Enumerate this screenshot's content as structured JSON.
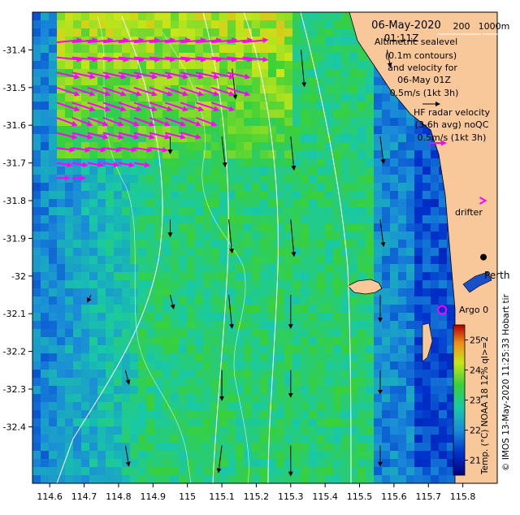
{
  "header": {
    "date": "06-May-2020",
    "time": "01:11Z",
    "bathy_labels": [
      "200",
      "1000m"
    ]
  },
  "legend": {
    "altimetry_lines": [
      "Altimetric sealevel",
      "(0.1m contours)",
      "and velocity for",
      "06-May 01Z",
      "0.5m/s (1kt 3h)"
    ],
    "radar_lines": [
      "HF radar velocity",
      "(3-6h avg) noQC",
      "0.5m/s (1kt 3h)"
    ],
    "drifter_label": "drifter",
    "argo_label": "Argo 0"
  },
  "places": {
    "city": "Perth",
    "partial_label": "Hobart tir"
  },
  "colorbar": {
    "ticks": [
      "25",
      "24",
      "23",
      "22",
      "21"
    ],
    "caption": "Temp. (°C) NOAA 18 12% qI>=2"
  },
  "credit": "© IMOS 13-May-2020 11:25:33 Hobart tir",
  "colors": {
    "land": "#f8c89a",
    "radar_arrow": "#ff00ff",
    "altimetry_arrow": "#000000",
    "contour": "#ffffff"
  },
  "chart_data": {
    "type": "heatmap",
    "xlabel": "",
    "ylabel": "",
    "xlim": [
      114.55,
      115.9
    ],
    "ylim": [
      -32.55,
      -31.3
    ],
    "x_ticks": [
      "114.6",
      "114.7",
      "114.8",
      "114.9",
      "115",
      "115.1",
      "115.2",
      "115.3",
      "115.4",
      "115.5",
      "115.6",
      "115.7",
      "115.8"
    ],
    "y_ticks": [
      "-31.4",
      "-31.5",
      "-31.6",
      "-31.7",
      "-31.8",
      "-31.9",
      "-32",
      "-32.1",
      "-32.2",
      "-32.3",
      "-32.4"
    ],
    "color_range": [
      20.5,
      25.5
    ],
    "colorbar_values": [
      25,
      24,
      23,
      22,
      21
    ],
    "altimetry_vectors": [
      {
        "lon": 115.13,
        "lat": -31.45,
        "u": 0.01,
        "v": -0.09
      },
      {
        "lon": 115.33,
        "lat": -31.4,
        "u": 0.01,
        "v": -0.11
      },
      {
        "lon": 115.58,
        "lat": -31.4,
        "u": 0.01,
        "v": -0.05
      },
      {
        "lon": 114.95,
        "lat": -31.63,
        "u": 0.0,
        "v": -0.05
      },
      {
        "lon": 115.1,
        "lat": -31.63,
        "u": 0.01,
        "v": -0.09
      },
      {
        "lon": 115.3,
        "lat": -31.63,
        "u": 0.01,
        "v": -0.1
      },
      {
        "lon": 115.56,
        "lat": -31.63,
        "u": 0.01,
        "v": -0.08
      },
      {
        "lon": 114.95,
        "lat": -31.85,
        "u": 0.0,
        "v": -0.05
      },
      {
        "lon": 115.12,
        "lat": -31.85,
        "u": 0.01,
        "v": -0.1
      },
      {
        "lon": 115.3,
        "lat": -31.85,
        "u": 0.01,
        "v": -0.11
      },
      {
        "lon": 115.56,
        "lat": -31.85,
        "u": 0.01,
        "v": -0.08
      },
      {
        "lon": 114.72,
        "lat": -32.05,
        "u": -0.01,
        "v": -0.02
      },
      {
        "lon": 114.95,
        "lat": -32.05,
        "u": 0.01,
        "v": -0.04
      },
      {
        "lon": 115.12,
        "lat": -32.05,
        "u": 0.01,
        "v": -0.1
      },
      {
        "lon": 115.3,
        "lat": -32.05,
        "u": 0.0,
        "v": -0.1
      },
      {
        "lon": 115.56,
        "lat": -32.05,
        "u": 0.0,
        "v": -0.08
      },
      {
        "lon": 114.82,
        "lat": -32.25,
        "u": 0.01,
        "v": -0.04
      },
      {
        "lon": 115.1,
        "lat": -32.25,
        "u": 0.0,
        "v": -0.09
      },
      {
        "lon": 115.3,
        "lat": -32.25,
        "u": 0.0,
        "v": -0.08
      },
      {
        "lon": 115.56,
        "lat": -32.25,
        "u": 0.0,
        "v": -0.07
      },
      {
        "lon": 114.82,
        "lat": -32.45,
        "u": 0.01,
        "v": -0.06
      },
      {
        "lon": 115.1,
        "lat": -32.45,
        "u": -0.01,
        "v": -0.08
      },
      {
        "lon": 115.3,
        "lat": -32.45,
        "u": 0.0,
        "v": -0.09
      },
      {
        "lon": 115.56,
        "lat": -32.45,
        "u": 0.0,
        "v": -0.06
      }
    ],
    "radar_rows": [
      {
        "lat": -31.38,
        "lon_start": 114.62,
        "lon_end": 115.18,
        "u": 0.1,
        "v": 0.01
      },
      {
        "lat": -31.42,
        "lon_start": 114.62,
        "lon_end": 115.18,
        "u": 0.1,
        "v": -0.01
      },
      {
        "lat": -31.46,
        "lon_start": 114.62,
        "lon_end": 115.15,
        "u": 0.09,
        "v": -0.02
      },
      {
        "lat": -31.5,
        "lon_start": 114.62,
        "lon_end": 115.12,
        "u": 0.09,
        "v": -0.03
      },
      {
        "lat": -31.54,
        "lon_start": 114.62,
        "lon_end": 115.08,
        "u": 0.09,
        "v": -0.03
      },
      {
        "lat": -31.58,
        "lon_start": 114.62,
        "lon_end": 115.05,
        "u": 0.08,
        "v": -0.03
      },
      {
        "lat": -31.62,
        "lon_start": 114.62,
        "lon_end": 114.98,
        "u": 0.08,
        "v": -0.02
      },
      {
        "lat": -31.66,
        "lon_start": 114.62,
        "lon_end": 114.9,
        "u": 0.07,
        "v": -0.01
      },
      {
        "lat": -31.7,
        "lon_start": 114.62,
        "lon_end": 114.85,
        "u": 0.06,
        "v": -0.01
      },
      {
        "lat": -31.74,
        "lon_start": 114.62,
        "lon_end": 114.7,
        "u": 0.05,
        "v": 0.0
      }
    ],
    "drifter_marker": {
      "lon": 115.88,
      "lat": -31.8
    },
    "argo_marker": {
      "lon": 115.74,
      "lat": -32.09
    },
    "perth_marker": {
      "lon": 115.86,
      "lat": -31.95
    }
  }
}
